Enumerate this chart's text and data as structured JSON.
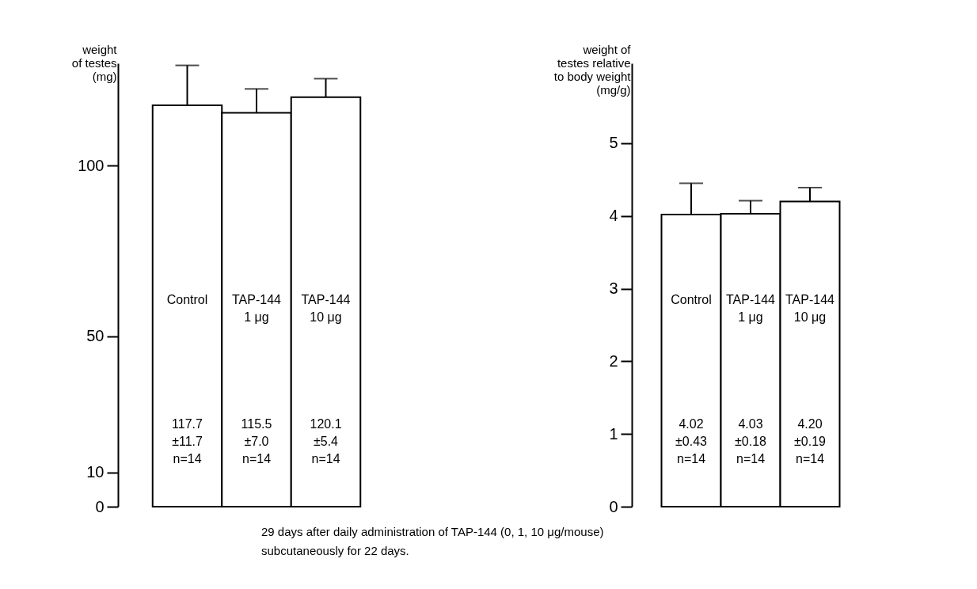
{
  "chart_data": [
    {
      "type": "bar",
      "ylabel": "weight\nof testes\n(mg)",
      "categories": [
        "Control",
        "TAP-144\n1 μg",
        "TAP-144\n10 μg"
      ],
      "series": [
        {
          "color": "#ffffff",
          "values": [
            117.7,
            115.5,
            120.1
          ],
          "errors": [
            [
              117.7,
              129.4
            ],
            [
              115.5,
              122.5
            ],
            [
              120.1,
              125.5
            ]
          ],
          "value_labels": [
            "117.7\n±11.7\n\nn=14",
            "115.5\n±7.0\n\nn=14",
            "120.1\n±5.4\n\nn=14"
          ]
        }
      ],
      "ylim": [
        0,
        130
      ],
      "yticks": [
        0,
        10,
        50,
        100
      ],
      "grid": false,
      "tick_labels": "y",
      "annotations": [
        "29 days after daily administration of TAP-144 (0, 1, 10 μg/mouse)\nsubcutaneously for 22 days."
      ]
    },
    {
      "type": "bar",
      "ylabel": "weight of\ntestes relative\nto body weight\n(mg/g)",
      "categories": [
        "Control",
        "TAP-144\n1 μg",
        "TAP-144\n10 μg"
      ],
      "series": [
        {
          "color": "#ffffff",
          "values": [
            4.02,
            4.03,
            4.2
          ],
          "errors": [
            [
              4.02,
              4.45
            ],
            [
              4.03,
              4.21
            ],
            [
              4.2,
              4.39
            ]
          ],
          "value_labels": [
            "4.02\n±0.43\n\nn=14",
            "4.03\n±0.18\n\nn=14",
            "4.20\n±0.19\n\nn=14"
          ]
        }
      ],
      "ylim": [
        0,
        6.1
      ],
      "yticks": [
        0,
        1,
        2,
        3,
        4,
        5
      ],
      "grid": false,
      "tick_labels": "y"
    }
  ]
}
